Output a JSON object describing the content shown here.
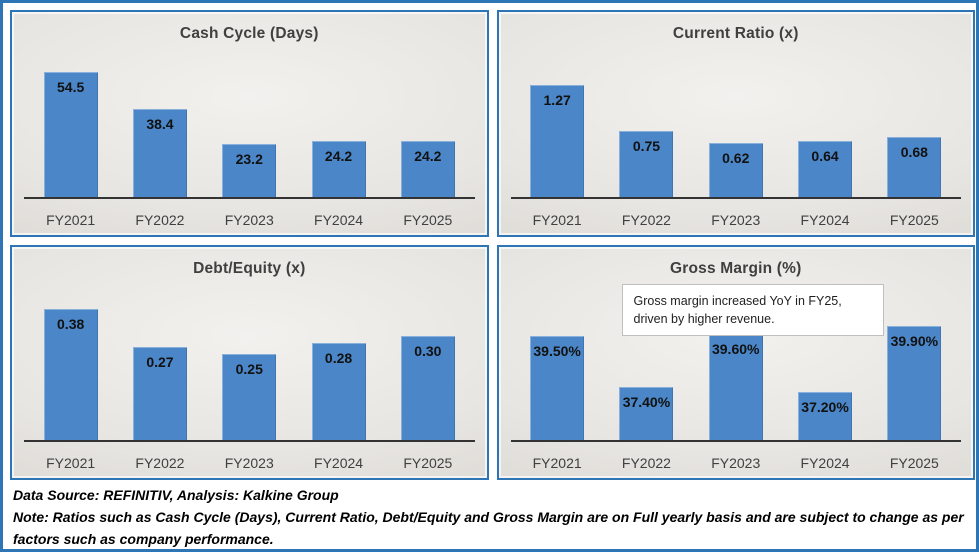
{
  "colors": {
    "frame_border": "#2E75B6",
    "panel_border": "#2E75B6",
    "bar_fill": "#4A86C8",
    "axis_line": "#333333",
    "title_text": "#3F3F3F",
    "value_label_text": "#111111",
    "axis_label_text": "#404040"
  },
  "chart_data": [
    {
      "type": "bar",
      "title": "Cash Cycle (Days)",
      "categories": [
        "FY2021",
        "FY2022",
        "FY2023",
        "FY2024",
        "FY2025"
      ],
      "values": [
        54.5,
        38.4,
        23.2,
        24.2,
        24.2
      ],
      "data_labels": [
        "54.5",
        "38.4",
        "23.2",
        "24.2",
        "24.2"
      ],
      "xlabel": "",
      "ylabel": "",
      "ylim": [
        0,
        63
      ],
      "grid": false,
      "legend": false,
      "label_position": "inside-top"
    },
    {
      "type": "bar",
      "title": "Current Ratio (x)",
      "categories": [
        "FY2021",
        "FY2022",
        "FY2023",
        "FY2024",
        "FY2025"
      ],
      "values": [
        1.27,
        0.75,
        0.62,
        0.64,
        0.68
      ],
      "data_labels": [
        "1.27",
        "0.75",
        "0.62",
        "0.64",
        "0.68"
      ],
      "xlabel": "",
      "ylabel": "",
      "ylim": [
        0,
        1.65
      ],
      "grid": false,
      "legend": false,
      "label_position": "inside-top"
    },
    {
      "type": "bar",
      "title": "Debt/Equity (x)",
      "categories": [
        "FY2021",
        "FY2022",
        "FY2023",
        "FY2024",
        "FY2025"
      ],
      "values": [
        0.38,
        0.27,
        0.25,
        0.28,
        0.3
      ],
      "data_labels": [
        "0.38",
        "0.27",
        "0.25",
        "0.28",
        "0.30"
      ],
      "xlabel": "",
      "ylabel": "",
      "ylim": [
        0,
        0.42
      ],
      "grid": false,
      "legend": false,
      "label_position": "inside-top"
    },
    {
      "type": "bar",
      "title": "Gross Margin (%)",
      "categories": [
        "FY2021",
        "FY2022",
        "FY2023",
        "FY2024",
        "FY2025"
      ],
      "values": [
        39.5,
        37.4,
        39.6,
        37.2,
        39.9
      ],
      "data_labels": [
        "39.50%",
        "37.40%",
        "39.60%",
        "37.20%",
        "39.90%"
      ],
      "xlabel": "",
      "ylabel": "",
      "ylim": [
        35.2,
        41.2
      ],
      "grid": false,
      "legend": false,
      "label_position": "inside-top",
      "annotation": {
        "line1": "Gross margin increased YoY in FY25,",
        "line2": "driven by higher revenue."
      }
    }
  ],
  "footer": {
    "source": "Data Source: REFINITIV, Analysis: Kalkine Group",
    "note": "Note: Ratios such as Cash Cycle (Days), Current Ratio, Debt/Equity  and Gross Margin are on Full yearly basis and are subject to change as per factors such as company performance."
  }
}
